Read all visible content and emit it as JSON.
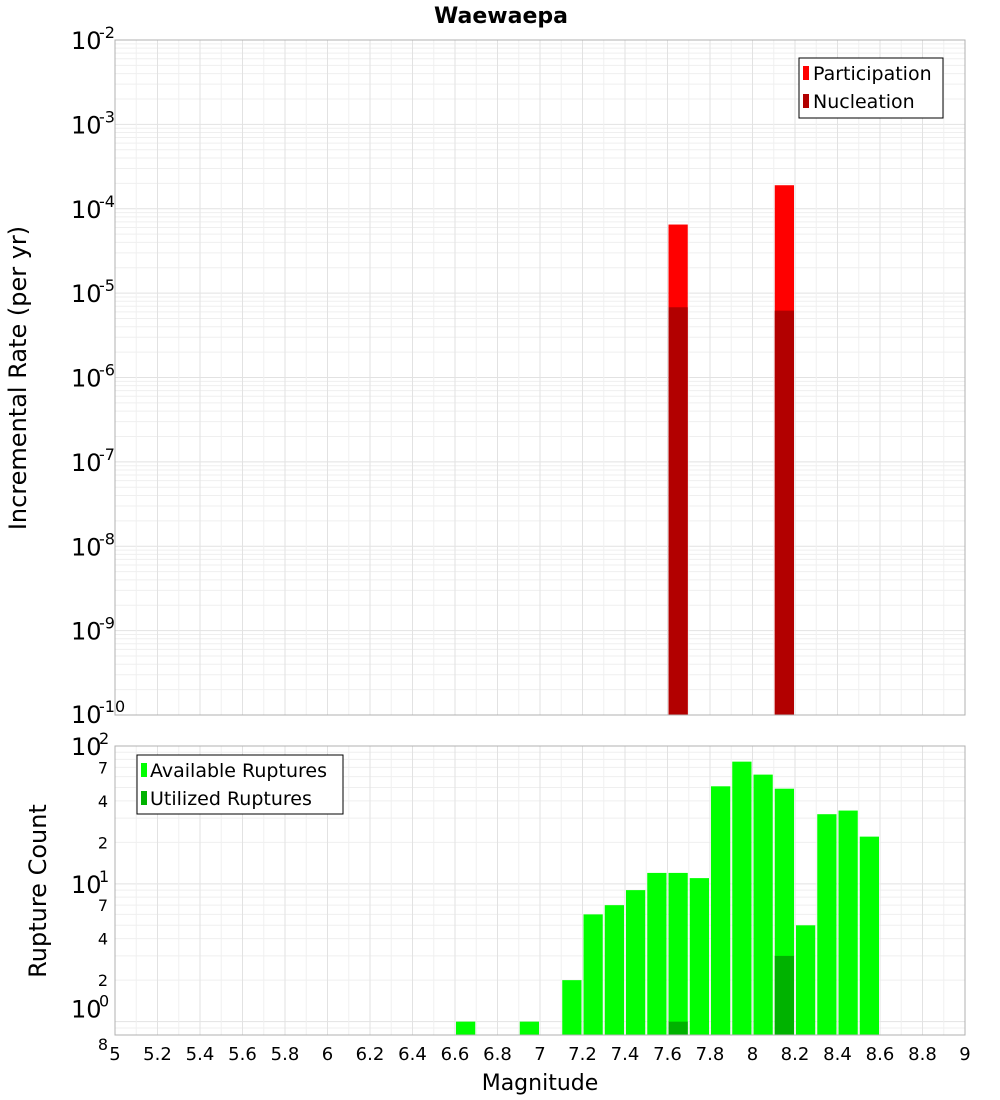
{
  "chart_data": [
    {
      "type": "bar",
      "title": "Waewaepa",
      "ylabel": "Incremental Rate (per yr)",
      "yscale": "log",
      "ylim": [
        1e-10,
        0.01
      ],
      "xlim": [
        5,
        9
      ],
      "bar_width": 0.1,
      "y_decade_ticks": [
        {
          "base": "10",
          "exp": "-10",
          "value": 1e-10
        },
        {
          "base": "10",
          "exp": "-9",
          "value": 1e-09
        },
        {
          "base": "10",
          "exp": "-8",
          "value": 1e-08
        },
        {
          "base": "10",
          "exp": "-7",
          "value": 1e-07
        },
        {
          "base": "10",
          "exp": "-6",
          "value": 1e-06
        },
        {
          "base": "10",
          "exp": "-5",
          "value": 1e-05
        },
        {
          "base": "10",
          "exp": "-4",
          "value": 0.0001
        },
        {
          "base": "10",
          "exp": "-3",
          "value": 0.001
        },
        {
          "base": "10",
          "exp": "-2",
          "value": 0.01
        }
      ],
      "legend_position": "top-right",
      "series": [
        {
          "name": "Participation",
          "color": "#ff0000",
          "x": [
            7.65,
            8.15
          ],
          "values": [
            6.5e-05,
            0.00019
          ]
        },
        {
          "name": "Nucleation",
          "color": "#b20000",
          "x": [
            7.65,
            8.15
          ],
          "values": [
            6.8e-06,
            6.2e-06
          ]
        }
      ]
    },
    {
      "type": "bar",
      "xlabel": "Magnitude",
      "ylabel": "Rupture Count",
      "yscale": "log",
      "ylim": [
        0.8,
        100
      ],
      "xlim": [
        5,
        9
      ],
      "bar_width": 0.1,
      "x_ticks": [
        "5",
        "5.2",
        "5.4",
        "5.6",
        "5.8",
        "6",
        "6.2",
        "6.4",
        "6.6",
        "6.8",
        "7",
        "7.2",
        "7.4",
        "7.6",
        "7.8",
        "8",
        "8.2",
        "8.4",
        "8.6",
        "8.8",
        "9"
      ],
      "y_decade_ticks": [
        {
          "base": "10",
          "exp": "0",
          "value": 1
        },
        {
          "base": "10",
          "exp": "1",
          "value": 10
        },
        {
          "base": "10",
          "exp": "2",
          "value": 100
        }
      ],
      "y_minor_labels": [
        {
          "label": "8",
          "value": 0.8
        },
        {
          "label": "2",
          "value": 2
        },
        {
          "label": "4",
          "value": 4
        },
        {
          "label": "7",
          "value": 7
        },
        {
          "label": "2",
          "value": 20
        },
        {
          "label": "4",
          "value": 40
        },
        {
          "label": "7",
          "value": 70
        }
      ],
      "legend_position": "top-left",
      "series": [
        {
          "name": "Available Ruptures",
          "color": "#00ff00",
          "x": [
            6.65,
            6.95,
            7.15,
            7.25,
            7.35,
            7.45,
            7.55,
            7.65,
            7.75,
            7.85,
            7.95,
            8.05,
            8.15,
            8.25,
            8.35,
            8.45,
            8.55
          ],
          "values": [
            1,
            1,
            2,
            6,
            7,
            9,
            12,
            12,
            11,
            51,
            77,
            62,
            49,
            5,
            32,
            34,
            22
          ]
        },
        {
          "name": "Utilized Ruptures",
          "color": "#00b200",
          "x": [
            7.65,
            8.15
          ],
          "values": [
            1,
            3
          ]
        }
      ]
    }
  ]
}
